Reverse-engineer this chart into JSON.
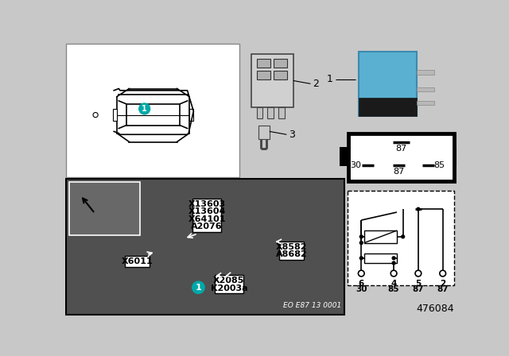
{
  "bg_color": "#c8c8c8",
  "white": "#ffffff",
  "black": "#000000",
  "teal": "#00a8a8",
  "blue_relay": "#5ab0d0",
  "photo_bg": "#505050",
  "photo_inset_bg": "#686868",
  "part_number": "476084",
  "eo_code": "EO E87 13 0001",
  "top_labels": [
    "A2076",
    "X64101",
    "X13604",
    "X13603"
  ],
  "right_labels": [
    "A8682",
    "X8582"
  ],
  "x6011": "X6011",
  "k2003a": "K2003a",
  "x2085": "X2085",
  "pin_top": [
    "6",
    "4",
    "5",
    "2"
  ],
  "pin_bot": [
    "30",
    "85",
    "87",
    "87"
  ],
  "relay_pins": [
    "30",
    "87",
    "85"
  ],
  "relay_pin_top": "87",
  "item1": "1",
  "item2": "2",
  "item3": "3"
}
